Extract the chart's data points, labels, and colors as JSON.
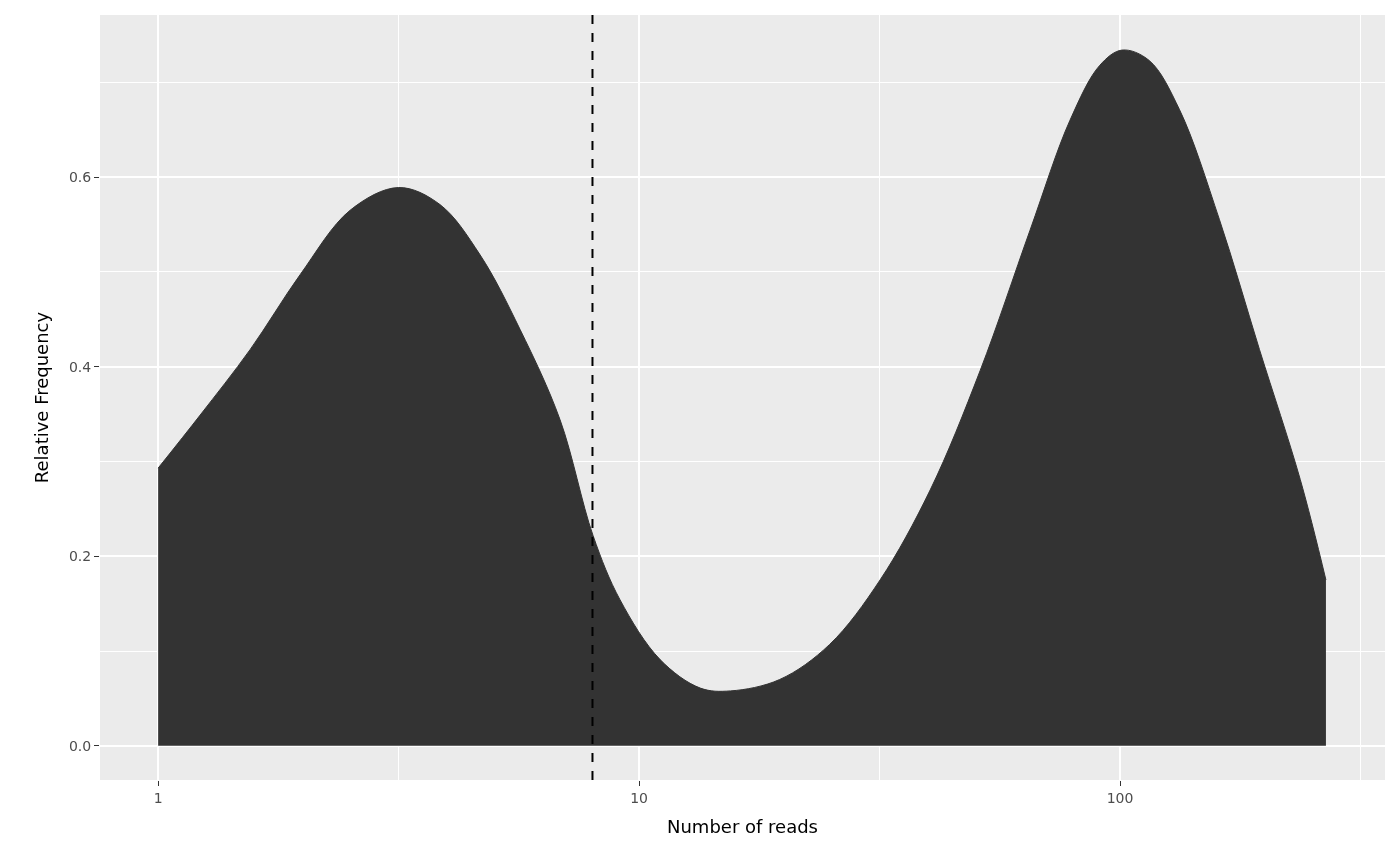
{
  "chart_data": {
    "type": "area",
    "xlabel": "Number of reads",
    "ylabel": "Relative Frequency",
    "log": "x",
    "x": [
      1,
      1.223,
      1.553,
      1.973,
      2.507,
      3.16,
      3.855,
      4.67,
      5.66,
      6.85,
      8.02,
      9.13,
      11.06,
      13.4,
      15.5,
      19.6,
      24.9,
      31.7,
      40.3,
      51.2,
      65.0,
      78.7,
      90.8,
      101,
      115,
      133,
      161,
      195,
      237,
      268
    ],
    "series": [
      {
        "color": "#333333",
        "values": [
          0.293,
          0.349,
          0.418,
          0.497,
          0.565,
          0.589,
          0.571,
          0.518,
          0.439,
          0.344,
          0.222,
          0.154,
          0.091,
          0.061,
          0.058,
          0.07,
          0.107,
          0.175,
          0.27,
          0.396,
          0.544,
          0.66,
          0.718,
          0.734,
          0.723,
          0.671,
          0.555,
          0.418,
          0.281,
          0.175
        ]
      }
    ],
    "xlim": [
      0.757,
      355.6
    ],
    "ylim": [
      -0.036,
      0.771
    ],
    "xticks": [
      1,
      10,
      100,
      {
        "value": 3.162,
        "label": null
      },
      {
        "value": 31.62,
        "label": null
      },
      {
        "value": 316.2,
        "label": null
      }
    ],
    "yticks": [
      {
        "value": 0,
        "label": "0.0"
      },
      {
        "value": 0.2,
        "label": "0.2"
      },
      {
        "value": 0.4,
        "label": "0.4"
      },
      {
        "value": 0.6,
        "label": "0.6"
      },
      {
        "value": 0.1,
        "label": null
      },
      {
        "value": 0.3,
        "label": null
      },
      {
        "value": 0.5,
        "label": null
      },
      {
        "value": 0.7,
        "label": null
      }
    ],
    "ref_lines": [
      {
        "axis": "x",
        "value": 8,
        "color": "#000000",
        "line_style": "dashed"
      }
    ],
    "grid": true
  }
}
